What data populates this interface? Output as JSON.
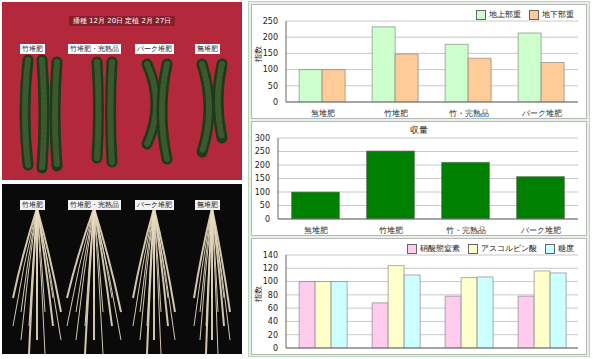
{
  "photos": [
    {
      "caption": "播種 12月 20日 定植 2月 27日",
      "labels": [
        "竹堆肥",
        "竹堆肥・完熟品",
        "バーク堆肥",
        "無堆肥"
      ]
    },
    {
      "labels": [
        "竹堆肥",
        "竹堆肥・完熟品",
        "バーク堆肥",
        "無堆肥"
      ]
    }
  ],
  "chart_data": [
    {
      "type": "bar",
      "ylabel": "指数",
      "categories": [
        "無堆肥",
        "竹堆肥",
        "竹・完熟品",
        "バーク堆肥"
      ],
      "series": [
        {
          "name": "地上部重",
          "color": "#ccffcc",
          "values": [
            100,
            232,
            178,
            213
          ]
        },
        {
          "name": "地下部重",
          "color": "#ffcc99",
          "values": [
            100,
            148,
            135,
            122
          ]
        }
      ],
      "ylim": [
        0,
        250
      ],
      "yticks": [
        0,
        50,
        100,
        150,
        200,
        250
      ],
      "grid": true,
      "legend": "top right"
    },
    {
      "type": "bar",
      "title": "収量",
      "categories": [
        "無堆肥",
        "竹堆肥",
        "竹・完熟品",
        "バーク堆肥"
      ],
      "values": [
        100,
        252,
        210,
        157
      ],
      "color": "#008000",
      "ylim": [
        0,
        300
      ],
      "yticks": [
        0,
        50,
        100,
        150,
        200,
        250,
        300
      ],
      "grid": true
    },
    {
      "type": "bar",
      "ylabel": "指数",
      "categories": [
        null,
        null,
        null,
        null
      ],
      "series": [
        {
          "name": "硝酸態窒素",
          "color": "#ffccee",
          "values": [
            100,
            68,
            78,
            78
          ]
        },
        {
          "name": "アスコルビン酸",
          "color": "#ffffcc",
          "values": [
            100,
            124,
            106,
            116
          ]
        },
        {
          "name": "糖度",
          "color": "#ccffff",
          "values": [
            100,
            110,
            107,
            113
          ]
        }
      ],
      "ylim": [
        0,
        140
      ],
      "yticks": [
        0,
        20,
        40,
        60,
        80,
        100,
        120,
        140
      ],
      "grid": true,
      "legend": "top right",
      "tick_labels": "y"
    }
  ]
}
